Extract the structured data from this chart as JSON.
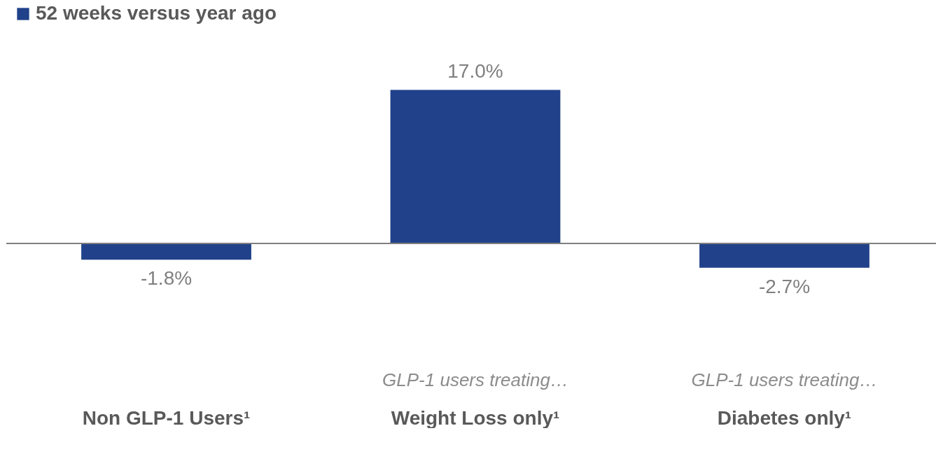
{
  "chart_data": {
    "type": "bar",
    "categories": [
      "Non GLP-1 Users¹",
      "Weight Loss only¹",
      "Diabetes only¹"
    ],
    "series": [
      {
        "name": "52 weeks versus year ago",
        "color": "#21418a",
        "values": [
          -1.8,
          17.0,
          -2.7
        ],
        "value_labels": [
          "-1.8%",
          "17.0%",
          "-2.7%"
        ]
      }
    ],
    "annotations": [
      "GLP-1 users treating…",
      "GLP-1 users treating…"
    ],
    "legend": "top"
  }
}
